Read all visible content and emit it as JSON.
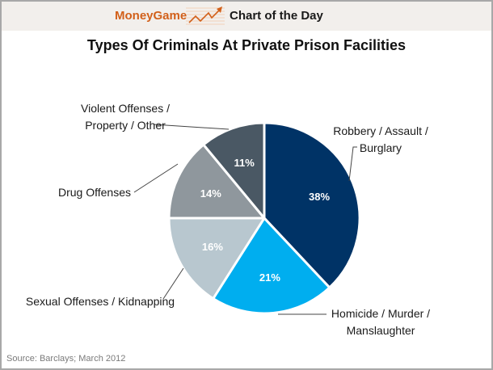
{
  "header": {
    "brand": "MoneyGame",
    "brand_color": "#d2601a",
    "logo_icon": "trend-up-arrow-icon",
    "section": "Chart of the Day"
  },
  "chart_data": {
    "type": "pie",
    "title": "Types Of Criminals At Private Prison Facilities",
    "start": "12 o'clock, clockwise",
    "slices": [
      {
        "label_lines": [
          "Robbery / Assault /",
          "Burglary"
        ],
        "value": 38,
        "display": "38%",
        "color": "#003366"
      },
      {
        "label_lines": [
          "Homicide / Murder /",
          "Manslaughter"
        ],
        "value": 21,
        "display": "21%",
        "color": "#00aeef"
      },
      {
        "label_lines": [
          "Sexual Offenses / Kidnapping"
        ],
        "value": 16,
        "display": "16%",
        "color": "#b8c7cf"
      },
      {
        "label_lines": [
          "Drug Offenses"
        ],
        "value": 14,
        "display": "14%",
        "color": "#8f979d"
      },
      {
        "label_lines": [
          "Violent Offenses /",
          "Property / Other"
        ],
        "value": 11,
        "display": "11%",
        "color": "#4a5864"
      }
    ]
  },
  "footer": {
    "source": "Source: Barclays; March 2012"
  }
}
